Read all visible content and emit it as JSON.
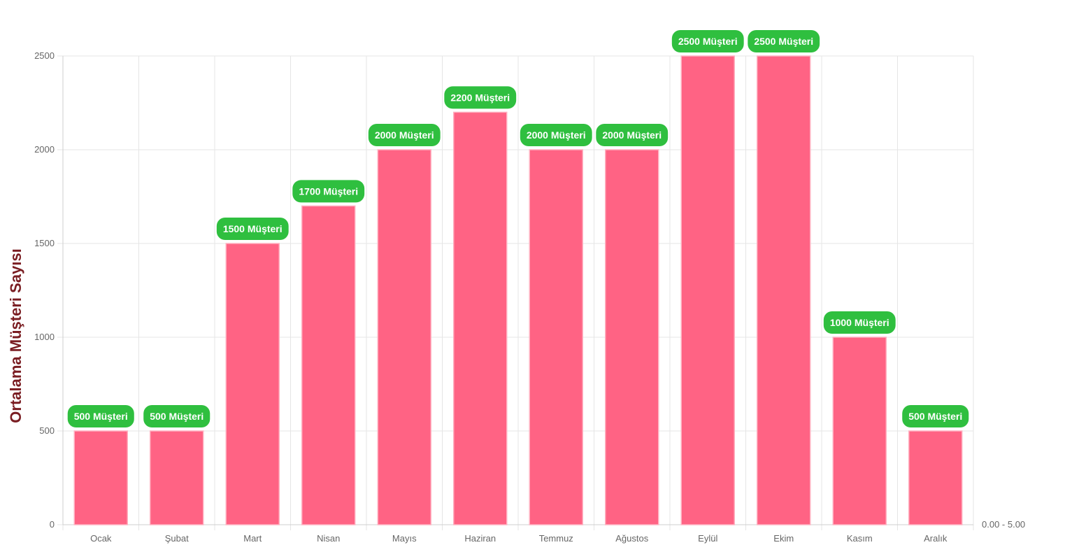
{
  "chart_data": {
    "type": "bar",
    "categories": [
      "Ocak",
      "Şubat",
      "Mart",
      "Nisan",
      "Mayıs",
      "Haziran",
      "Temmuz",
      "Ağustos",
      "Eylül",
      "Ekim",
      "Kasım",
      "Aralık"
    ],
    "values": [
      500,
      500,
      1500,
      1700,
      2000,
      2200,
      2000,
      2000,
      2500,
      2500,
      1000,
      500
    ],
    "data_labels": [
      "500 Müşteri",
      "500 Müşteri",
      "1500 Müşteri",
      "1700 Müşteri",
      "2000 Müşteri",
      "2200 Müşteri",
      "2000 Müşteri",
      "2000 Müşteri",
      "2500 Müşteri",
      "2500 Müşteri",
      "1000 Müşteri",
      "500 Müşteri"
    ],
    "ylabel": "Ortalama Müşteri Sayısı",
    "xlabel": "",
    "ylim": [
      0,
      2500
    ],
    "yticks": [
      "0",
      "500",
      "1000",
      "1500",
      "2000",
      "2500"
    ],
    "right_axis_label": "0.00 - 5.00",
    "grid": true,
    "colors": {
      "bar_fill": "#ff6384",
      "bar_border": "#ffb1c1",
      "label_background": "#2fbf3f",
      "label_text": "#ffffff",
      "axis_title": "#7a1d22",
      "gridline": "#e5e5e5",
      "tick_text": "#666666"
    }
  }
}
